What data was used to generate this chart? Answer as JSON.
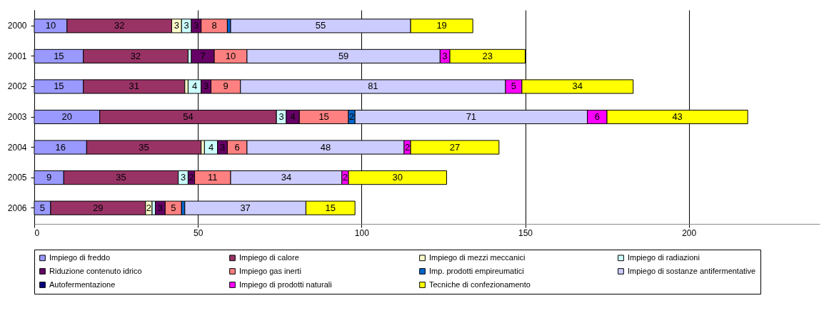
{
  "chart_data": {
    "type": "bar",
    "orientation": "horizontal",
    "stacked": true,
    "grid": "x",
    "legend": "bottom",
    "categories": [
      "2000",
      "2001",
      "2002",
      "2003",
      "2004",
      "2005",
      "2006"
    ],
    "xlim": [
      0,
      240
    ],
    "xticks": [
      0,
      50,
      100,
      150,
      200
    ],
    "series": [
      {
        "name": "Impiego di freddo",
        "color": "#9999ff",
        "values": [
          10,
          15,
          15,
          20,
          16,
          9,
          5
        ],
        "value_labels": [
          "10",
          "15",
          "15",
          "20",
          "16",
          "9",
          "5"
        ]
      },
      {
        "name": "Impiego di calore",
        "color": "#993366",
        "values": [
          32,
          32,
          31,
          54,
          35,
          35,
          29
        ],
        "value_labels": [
          "32",
          "32",
          "31",
          "54",
          "35",
          "35",
          "29"
        ]
      },
      {
        "name": "Impiego di mezzi meccanici",
        "color": "#ffffcc",
        "values": [
          3,
          0,
          1,
          0,
          1,
          0,
          2
        ],
        "value_labels": [
          "3",
          null,
          null,
          null,
          null,
          null,
          "2"
        ]
      },
      {
        "name": "Impiego di radiazioni",
        "color": "#ccffff",
        "values": [
          3,
          1,
          4,
          3,
          4,
          3,
          1
        ],
        "value_labels": [
          "3",
          null,
          "4",
          "3",
          "4",
          "3",
          null
        ]
      },
      {
        "name": "Riduzione contenuto idrico",
        "color": "#660066",
        "values": [
          3,
          7,
          3,
          4,
          3,
          2,
          3
        ],
        "value_labels": [
          "3",
          "7",
          "3",
          "4",
          "3",
          "2",
          "3"
        ]
      },
      {
        "name": "Impiego gas inerti",
        "color": "#ff8080",
        "values": [
          8,
          10,
          9,
          15,
          6,
          11,
          5
        ],
        "value_labels": [
          "8",
          "10",
          "9",
          "15",
          "6",
          "11",
          "5"
        ]
      },
      {
        "name": "Imp. prodotti empireumatici",
        "color": "#0066cc",
        "values": [
          1,
          0,
          0,
          2,
          0,
          0,
          1
        ],
        "value_labels": [
          null,
          null,
          null,
          "2",
          null,
          null,
          null
        ]
      },
      {
        "name": "Impiego di sostanze antifermentative",
        "color": "#ccccff",
        "values": [
          55,
          59,
          81,
          71,
          48,
          34,
          37
        ],
        "value_labels": [
          "55",
          "59",
          "81",
          "71",
          "48",
          "34",
          "37"
        ]
      },
      {
        "name": "Autofermentazione",
        "color": "#000080",
        "values": [
          0,
          0,
          0,
          0,
          0,
          0,
          0
        ]
      },
      {
        "name": "Impiego di prodotti naturali",
        "color": "#ff00ff",
        "values": [
          0,
          3,
          5,
          6,
          2,
          2,
          0
        ],
        "value_labels": [
          null,
          "3",
          "5",
          "6",
          "2",
          "2",
          null
        ]
      },
      {
        "name": "Tecniche di confezionamento",
        "color": "#ffff00",
        "values": [
          19,
          23,
          34,
          43,
          27,
          30,
          15
        ],
        "value_labels": [
          "19",
          "23",
          "34",
          "43",
          "27",
          "30",
          "15"
        ]
      }
    ]
  }
}
